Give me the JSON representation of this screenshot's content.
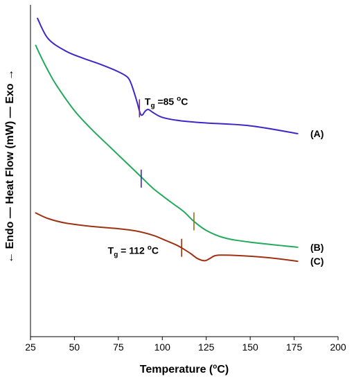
{
  "chart_data": {
    "type": "line",
    "xlabel": "Temperature (",
    "xlabel_sup": "o",
    "xlabel_end": "C)",
    "ylabel": "← Endo — Heat Flow (mW) — Exo →",
    "xlim": [
      25,
      200
    ],
    "x_ticks": [
      25,
      50,
      75,
      100,
      125,
      150,
      175,
      200
    ],
    "y_ticks_shown": false,
    "grid": false,
    "series": [
      {
        "name": "(A)",
        "color": "#3b28c8",
        "x": [
          29,
          35,
          45,
          55,
          65,
          75,
          80,
          82,
          84,
          86,
          87,
          88,
          89,
          90,
          92,
          95,
          100,
          110,
          125,
          150,
          177
        ],
        "y": [
          92.6,
          89,
          86.8,
          85.5,
          84.4,
          83.1,
          82.2,
          81.2,
          79.4,
          77.3,
          76.1,
          75.4,
          75.5,
          76.0,
          76.4,
          75.8,
          75.0,
          74.4,
          74.0,
          73.5,
          72.1
        ]
      },
      {
        "name": "(B)",
        "color": "#22a95a",
        "x": [
          28,
          30,
          35,
          40,
          50,
          60,
          70,
          80,
          88,
          95,
          105,
          112,
          118,
          125,
          135,
          150,
          177
        ],
        "y": [
          87.8,
          86.4,
          83.3,
          80.6,
          76.2,
          72.8,
          69.8,
          66.8,
          64.4,
          62.3,
          59.9,
          58.3,
          56.5,
          54.9,
          53.6,
          52.8,
          51.9
        ]
      },
      {
        "name": "(C)",
        "color": "#9e3112",
        "x": [
          28,
          35,
          45,
          60,
          75,
          85,
          95,
          102,
          108,
          112,
          116,
          120,
          124,
          127,
          130,
          135,
          150,
          165,
          177
        ],
        "y": [
          58.0,
          57.0,
          56.2,
          55.6,
          55.2,
          54.8,
          54.0,
          53.1,
          52.3,
          51.6,
          50.8,
          49.9,
          49.5,
          49.9,
          50.4,
          50.5,
          50.3,
          49.9,
          49.4
        ]
      }
    ],
    "series_labels": [
      {
        "text": "(A)",
        "y": 72.1
      },
      {
        "text": "(B)",
        "y": 51.9
      },
      {
        "text": "(C)",
        "y": 49.4
      }
    ],
    "tg_markers": [
      {
        "series": "(A)",
        "x": 87,
        "y": 76.6,
        "color": "#7a2a7a"
      },
      {
        "series": "(B)",
        "x": 88,
        "y": 64.1,
        "color": "#3b28c8"
      },
      {
        "series": "(B)",
        "x": 118,
        "y": 56.5,
        "color": "#9e6a1a"
      },
      {
        "series": "(C)",
        "x": 111,
        "y": 51.8,
        "color": "#9e3112"
      }
    ],
    "annotations": [
      {
        "base": "T",
        "sub": "g",
        "rest": " =85 ",
        "sup": "o",
        "end": "C",
        "x": 90,
        "y": 77.2
      },
      {
        "base": "T",
        "sub": "g",
        "rest": " = 112 ",
        "sup": "o",
        "end": "C",
        "x": 69,
        "y": 50.7
      }
    ]
  }
}
